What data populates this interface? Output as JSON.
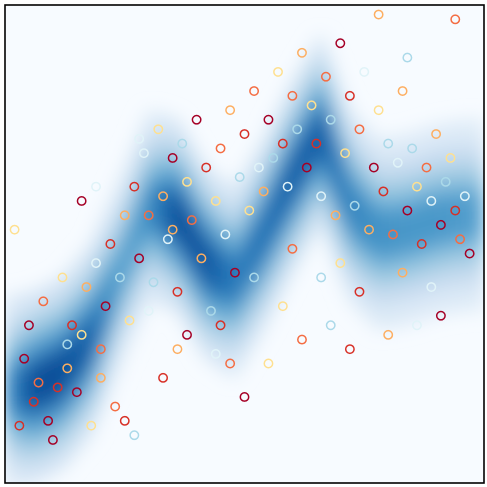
{
  "chart_data": {
    "type": "scatter",
    "title": "",
    "xlabel": "",
    "ylabel": "",
    "axes_visible": false,
    "grid": false,
    "legend": "none",
    "xlim": [
      0,
      1
    ],
    "ylim": [
      0,
      1
    ],
    "background": {
      "type": "density",
      "colormap": "Blues",
      "colors": [
        "#f7fbff",
        "#deebf7",
        "#c6dbef",
        "#9ecae1",
        "#6baed6",
        "#4292c6",
        "#2171b5",
        "#08519c",
        "#08306b"
      ],
      "ridge": {
        "x": [
          0.0,
          0.06,
          0.12,
          0.18,
          0.24,
          0.3,
          0.36,
          0.42,
          0.48,
          0.54,
          0.6,
          0.66,
          0.72,
          0.78,
          0.84,
          0.9,
          0.96,
          1.0
        ],
        "y": [
          0.19,
          0.2,
          0.23,
          0.3,
          0.44,
          0.58,
          0.56,
          0.46,
          0.42,
          0.52,
          0.64,
          0.74,
          0.58,
          0.52,
          0.53,
          0.55,
          0.56,
          0.56
        ],
        "strength": [
          0.6,
          0.88,
          0.88,
          0.8,
          0.55,
          0.62,
          0.88,
          0.85,
          0.7,
          0.75,
          0.82,
          0.82,
          0.68,
          0.62,
          0.6,
          0.6,
          0.58,
          0.55
        ]
      }
    },
    "marker": "hollow-circle",
    "palette": [
      "#a50026",
      "#d73027",
      "#f46d43",
      "#fdae61",
      "#fee090",
      "#e0f3f8",
      "#abd9e9"
    ],
    "points": [
      [
        0.04,
        0.26,
        0
      ],
      [
        0.06,
        0.17,
        1
      ],
      [
        0.07,
        0.21,
        2
      ],
      [
        0.09,
        0.13,
        0
      ],
      [
        0.11,
        0.2,
        1
      ],
      [
        0.13,
        0.24,
        3
      ],
      [
        0.15,
        0.19,
        0
      ],
      [
        0.16,
        0.31,
        4
      ],
      [
        0.05,
        0.33,
        0
      ],
      [
        0.08,
        0.38,
        2
      ],
      [
        0.12,
        0.43,
        4
      ],
      [
        0.14,
        0.33,
        1
      ],
      [
        0.17,
        0.41,
        3
      ],
      [
        0.19,
        0.46,
        5
      ],
      [
        0.2,
        0.28,
        2
      ],
      [
        0.21,
        0.37,
        0
      ],
      [
        0.22,
        0.5,
        1
      ],
      [
        0.24,
        0.43,
        6
      ],
      [
        0.25,
        0.56,
        3
      ],
      [
        0.26,
        0.34,
        4
      ],
      [
        0.27,
        0.62,
        1
      ],
      [
        0.28,
        0.47,
        0
      ],
      [
        0.29,
        0.69,
        5
      ],
      [
        0.3,
        0.56,
        2
      ],
      [
        0.31,
        0.42,
        6
      ],
      [
        0.32,
        0.74,
        4
      ],
      [
        0.33,
        0.6,
        3
      ],
      [
        0.34,
        0.51,
        5
      ],
      [
        0.35,
        0.68,
        0
      ],
      [
        0.36,
        0.4,
        1
      ],
      [
        0.37,
        0.71,
        6
      ],
      [
        0.38,
        0.63,
        4
      ],
      [
        0.39,
        0.55,
        2
      ],
      [
        0.4,
        0.76,
        0
      ],
      [
        0.41,
        0.47,
        3
      ],
      [
        0.42,
        0.66,
        1
      ],
      [
        0.43,
        0.36,
        6
      ],
      [
        0.44,
        0.59,
        4
      ],
      [
        0.45,
        0.7,
        2
      ],
      [
        0.46,
        0.52,
        5
      ],
      [
        0.47,
        0.78,
        3
      ],
      [
        0.48,
        0.44,
        0
      ],
      [
        0.49,
        0.64,
        6
      ],
      [
        0.5,
        0.73,
        1
      ],
      [
        0.51,
        0.57,
        4
      ],
      [
        0.52,
        0.82,
        2
      ],
      [
        0.53,
        0.66,
        5
      ],
      [
        0.54,
        0.61,
        3
      ],
      [
        0.55,
        0.76,
        0
      ],
      [
        0.56,
        0.68,
        6
      ],
      [
        0.57,
        0.86,
        4
      ],
      [
        0.58,
        0.71,
        1
      ],
      [
        0.59,
        0.62,
        5
      ],
      [
        0.6,
        0.81,
        2
      ],
      [
        0.61,
        0.74,
        6
      ],
      [
        0.62,
        0.9,
        3
      ],
      [
        0.63,
        0.66,
        0
      ],
      [
        0.64,
        0.79,
        4
      ],
      [
        0.65,
        0.71,
        1
      ],
      [
        0.66,
        0.6,
        5
      ],
      [
        0.67,
        0.85,
        2
      ],
      [
        0.68,
        0.76,
        6
      ],
      [
        0.69,
        0.56,
        3
      ],
      [
        0.7,
        0.92,
        0
      ],
      [
        0.71,
        0.69,
        4
      ],
      [
        0.72,
        0.81,
        1
      ],
      [
        0.73,
        0.58,
        6
      ],
      [
        0.74,
        0.74,
        2
      ],
      [
        0.75,
        0.86,
        5
      ],
      [
        0.76,
        0.53,
        3
      ],
      [
        0.77,
        0.66,
        0
      ],
      [
        0.78,
        0.78,
        4
      ],
      [
        0.79,
        0.61,
        1
      ],
      [
        0.8,
        0.71,
        6
      ],
      [
        0.81,
        0.52,
        2
      ],
      [
        0.82,
        0.67,
        5
      ],
      [
        0.83,
        0.82,
        3
      ],
      [
        0.84,
        0.57,
        0
      ],
      [
        0.85,
        0.7,
        6
      ],
      [
        0.86,
        0.62,
        4
      ],
      [
        0.87,
        0.5,
        1
      ],
      [
        0.88,
        0.66,
        2
      ],
      [
        0.89,
        0.59,
        5
      ],
      [
        0.9,
        0.73,
        3
      ],
      [
        0.91,
        0.54,
        0
      ],
      [
        0.92,
        0.63,
        6
      ],
      [
        0.93,
        0.68,
        4
      ],
      [
        0.94,
        0.57,
        1
      ],
      [
        0.95,
        0.51,
        2
      ],
      [
        0.96,
        0.6,
        5
      ],
      [
        0.03,
        0.12,
        1
      ],
      [
        0.1,
        0.09,
        0
      ],
      [
        0.18,
        0.12,
        4
      ],
      [
        0.23,
        0.16,
        2
      ],
      [
        0.27,
        0.1,
        6
      ],
      [
        0.33,
        0.22,
        1
      ],
      [
        0.36,
        0.28,
        3
      ],
      [
        0.44,
        0.27,
        5
      ],
      [
        0.5,
        0.18,
        0
      ],
      [
        0.55,
        0.25,
        4
      ],
      [
        0.62,
        0.3,
        2
      ],
      [
        0.68,
        0.33,
        6
      ],
      [
        0.72,
        0.28,
        1
      ],
      [
        0.8,
        0.31,
        3
      ],
      [
        0.86,
        0.33,
        5
      ],
      [
        0.91,
        0.35,
        0
      ],
      [
        0.94,
        0.97,
        2
      ],
      [
        0.78,
        0.98,
        3
      ],
      [
        0.84,
        0.89,
        6
      ],
      [
        0.16,
        0.59,
        0
      ],
      [
        0.19,
        0.62,
        5
      ],
      [
        0.02,
        0.53,
        4
      ],
      [
        0.13,
        0.29,
        6
      ],
      [
        0.2,
        0.22,
        3
      ],
      [
        0.25,
        0.13,
        1
      ],
      [
        0.3,
        0.36,
        5
      ],
      [
        0.38,
        0.31,
        0
      ],
      [
        0.47,
        0.25,
        2
      ],
      [
        0.58,
        0.37,
        4
      ],
      [
        0.66,
        0.43,
        6
      ],
      [
        0.74,
        0.4,
        1
      ],
      [
        0.83,
        0.44,
        3
      ],
      [
        0.89,
        0.41,
        5
      ],
      [
        0.97,
        0.48,
        0
      ],
      [
        0.6,
        0.49,
        2
      ],
      [
        0.7,
        0.46,
        4
      ],
      [
        0.52,
        0.43,
        6
      ],
      [
        0.45,
        0.33,
        1
      ],
      [
        0.35,
        0.53,
        3
      ],
      [
        0.28,
        0.72,
        5
      ]
    ]
  }
}
